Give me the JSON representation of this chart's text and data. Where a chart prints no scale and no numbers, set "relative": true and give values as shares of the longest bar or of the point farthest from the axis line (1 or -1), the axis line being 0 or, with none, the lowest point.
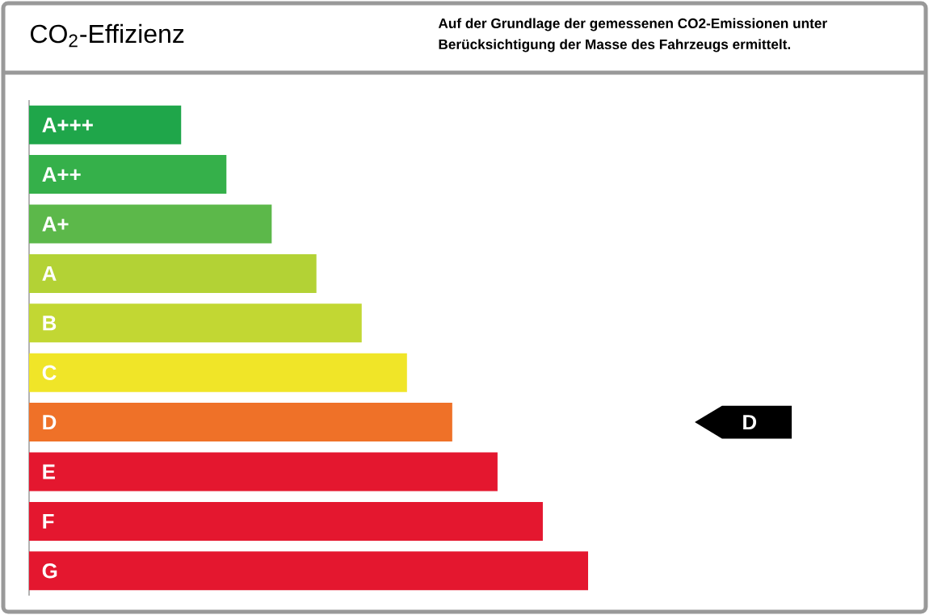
{
  "chart_data": {
    "type": "bar",
    "orientation": "horizontal",
    "relative": true,
    "title": "CO$_{2}$-Effizienz",
    "subtitle": "Auf der Grundlage der gemessenen CO2-Emissionen unter Berücksichtigung der Masse des Fahrzeugs ermittelt.",
    "categories": [
      "A+++",
      "A++",
      "A+",
      "A",
      "B",
      "C",
      "D",
      "E",
      "F",
      "G"
    ],
    "values": [
      0.272,
      0.353,
      0.434,
      0.514,
      0.595,
      0.676,
      0.757,
      0.838,
      0.919,
      1
    ],
    "colors": [
      "#1fa64a",
      "#35b04a",
      "#5cb84a",
      "#b3d235",
      "#c2d733",
      "#f0e528",
      "#ef7128",
      "#e4172f",
      "#e4172f",
      "#e4172f"
    ],
    "annotations": [
      "D"
    ]
  }
}
